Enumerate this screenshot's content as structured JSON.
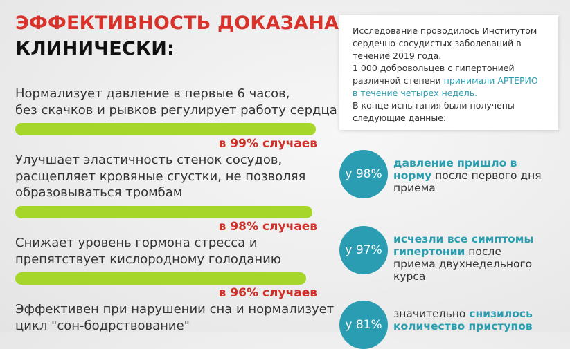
{
  "title": [
    "ЭФФЕКТИВНОСТЬ ДОКАЗАНА",
    "КЛИНИЧЕСКИ:"
  ],
  "benefits": [
    {
      "lines": [
        "Нормализует давление в первые 6 часов,",
        "без скачков и рывков регулирует работу сердца"
      ],
      "percent": 99,
      "label": "в 99% случаев"
    },
    {
      "lines": [
        "Улучшает эластичность стенок сосудов,",
        "расщепляет кровяные сгустки, не позволяя",
        "образовываться тромбам"
      ],
      "percent": 98,
      "label": "в 98% случаев"
    },
    {
      "lines": [
        "Снижает уровень гормона стресса и",
        "препятствует кислородному голоданию"
      ],
      "percent": 96,
      "label": "в 96% случаев"
    },
    {
      "lines": [
        "Эффективен при нарушении сна и нормализует",
        "цикл \"сон-бодрствование\""
      ]
    }
  ],
  "study": {
    "lines": [
      [
        {
          "text": "Исследование проводилось Институтом"
        }
      ],
      [
        {
          "text": "сердечно-сосудистых заболеваний в"
        }
      ],
      [
        {
          "text": "течение 2019 года."
        }
      ],
      [
        {
          "text": "1 000 добровольцев с гипертонией"
        }
      ],
      [
        {
          "text": "различной степени "
        },
        {
          "text": "принимали АРТЕРИО",
          "hl": true
        }
      ],
      [
        {
          "text": "в течение четырех недель.",
          "hl": true
        }
      ],
      [
        {
          "text": "В конце испытания были получены"
        }
      ],
      [
        {
          "text": "следующие данные:"
        }
      ]
    ]
  },
  "stats": [
    {
      "value": "у 98%",
      "lines": [
        [
          {
            "text": "давление пришло в",
            "hl": true
          }
        ],
        [
          {
            "text": "норму",
            "hl": true
          },
          {
            "text": " после первого дня"
          }
        ],
        [
          {
            "text": "приема"
          }
        ]
      ]
    },
    {
      "value": "у 97%",
      "lines": [
        [
          {
            "text": "исчезли все симптомы",
            "hl": true
          }
        ],
        [
          {
            "text": "гипертонии",
            "hl": true
          },
          {
            "text": " после"
          }
        ],
        [
          {
            "text": "приема двухнедельного"
          }
        ],
        [
          {
            "text": "курса"
          }
        ]
      ]
    },
    {
      "value": "у 81%",
      "lines": [
        [
          {
            "text": "значительно "
          },
          {
            "text": "снизилось",
            "hl": true
          }
        ],
        [
          {
            "text": "количество приступов",
            "hl": true
          }
        ]
      ]
    }
  ]
}
